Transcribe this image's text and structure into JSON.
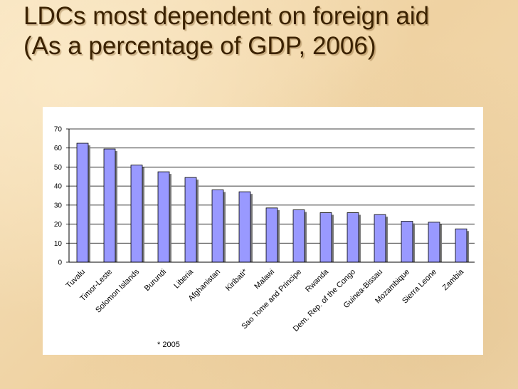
{
  "slide": {
    "title_line1": "LDCs most dependent on foreign aid",
    "title_line2": "(As a percentage of GDP, 2006)"
  },
  "chart_data": {
    "type": "bar",
    "title": "",
    "xlabel": "",
    "ylabel": "",
    "ylim": [
      0,
      70
    ],
    "yticks": [
      0,
      10,
      20,
      30,
      40,
      50,
      60,
      70
    ],
    "grid": true,
    "legend": "none",
    "categories": [
      "Tuvalu",
      "Timor-Leste",
      "Solomon Islands",
      "Burundi",
      "Liberia",
      "Afghanistan",
      "Kiribati*",
      "Malawi",
      "Sao Tome and Principe",
      "Rwanda",
      "Dem. Rep. of the Congo",
      "Guinea-Bissau",
      "Mozambique",
      "Sierra Leone",
      "Zambia"
    ],
    "values": [
      62.5,
      59.5,
      51,
      47.5,
      44.5,
      38,
      37,
      28.5,
      27.5,
      26,
      26,
      25,
      21.5,
      21,
      17.5
    ],
    "bar_color": "#9999ff",
    "footnote": "* 2005"
  }
}
